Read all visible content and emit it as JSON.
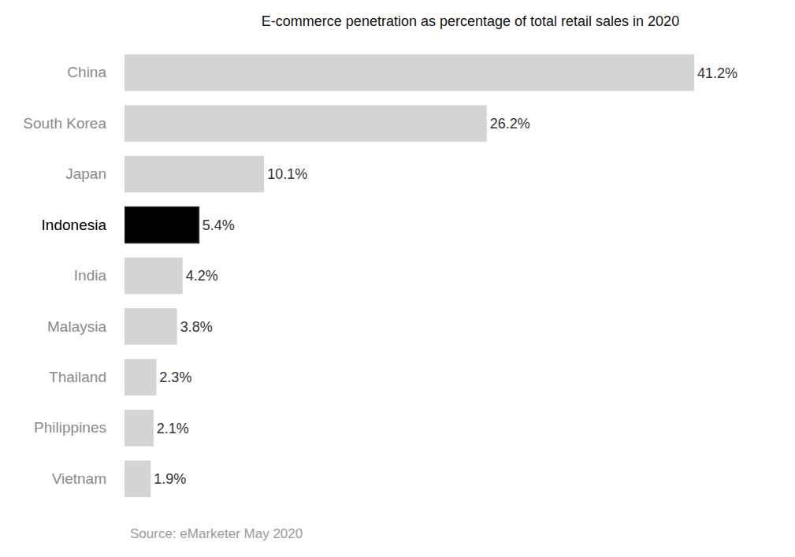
{
  "chart_data": {
    "type": "bar",
    "orientation": "horizontal",
    "title": "E-commerce penetration as percentage of total retail sales in 2020",
    "categories": [
      "China",
      "South Korea",
      "Japan",
      "Indonesia",
      "India",
      "Malaysia",
      "Thailand",
      "Philippines",
      "Vietnam"
    ],
    "values": [
      41.2,
      26.2,
      10.1,
      5.4,
      4.2,
      3.8,
      2.3,
      2.1,
      1.9
    ],
    "value_labels": [
      "41.2%",
      "26.2%",
      "10.1%",
      "5.4%",
      "4.2%",
      "3.8%",
      "2.3%",
      "2.1%",
      "1.9%"
    ],
    "colors": [
      "#d4d4d4",
      "#d4d4d4",
      "#d4d4d4",
      "#000000",
      "#d4d4d4",
      "#d4d4d4",
      "#d4d4d4",
      "#d4d4d4",
      "#d4d4d4"
    ],
    "xlim": [
      0,
      41.2
    ],
    "data_labels": true,
    "tick_labels": "y",
    "grid": false,
    "annotations": [
      "Source: eMarketer May 2020"
    ]
  }
}
